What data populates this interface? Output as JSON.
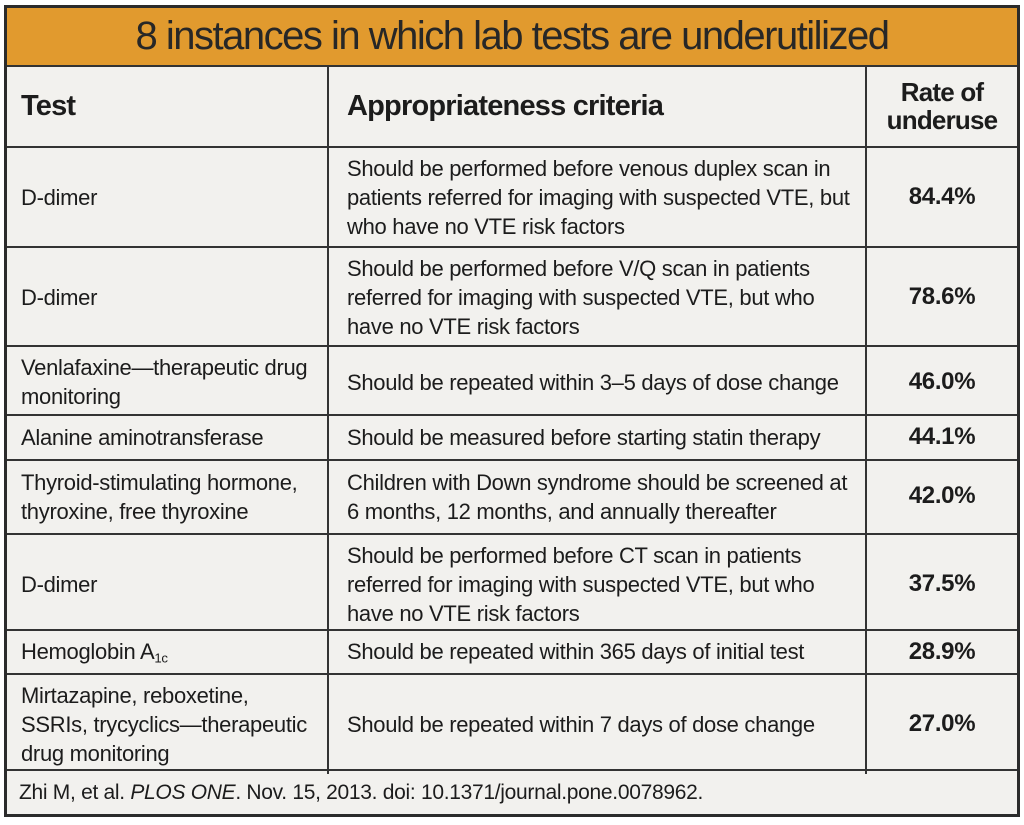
{
  "title": "8 instances in which lab tests are underutilized",
  "colors": {
    "title_bg": "#e19a2e",
    "border": "#2b2b2b",
    "grid_line": "#333333",
    "cell_bg": "#f2f1ee",
    "text": "#1c1c1c"
  },
  "table": {
    "headers": {
      "test": "Test",
      "criteria": "Appropriateness criteria",
      "rate": "Rate of underuse"
    },
    "rows": [
      {
        "test": "D-dimer",
        "criteria": "Should be performed before venous duplex scan in patients referred for imaging with suspected VTE, but who have no VTE risk factors",
        "rate": "84.4%"
      },
      {
        "test": "D-dimer",
        "criteria": "Should be performed before V/Q scan in patients referred for imaging with suspected VTE, but who have no VTE risk factors",
        "rate": "78.6%"
      },
      {
        "test": "Venlafaxine—therapeutic drug monitoring",
        "criteria": "Should be repeated within 3–5 days of dose change",
        "rate": "46.0%"
      },
      {
        "test": "Alanine aminotransferase",
        "criteria": "Should be measured before starting statin therapy",
        "rate": "44.1%"
      },
      {
        "test": "Thyroid-stimulating hormone, thyroxine, free thyroxine",
        "criteria": "Children with Down syndrome should be screened at 6 months, 12 months, and annually thereafter",
        "rate": "42.0%"
      },
      {
        "test": "D-dimer",
        "criteria": "Should be performed before CT scan in patients referred for imaging with suspected VTE, but who have no VTE risk factors",
        "rate": "37.5%"
      },
      {
        "test": "Hemoglobin A",
        "test_sub": "1c",
        "criteria": "Should be repeated within 365 days of initial test",
        "rate": "28.9%"
      },
      {
        "test": "Mirtazapine, reboxetine, SSRIs, trycyclics—therapeutic drug monitoring",
        "criteria": "Should be repeated within 7 days of dose change",
        "rate": "27.0%"
      }
    ]
  },
  "footer": {
    "citation_prefix": "Zhi M, et al. ",
    "journal": "PLOS ONE",
    "citation_suffix": ". Nov. 15, 2013. doi: 10.1371/journal.pone.0078962."
  },
  "chart_data": {
    "type": "table",
    "title": "8 instances in which lab tests are underutilized",
    "columns": [
      "Test",
      "Appropriateness criteria",
      "Rate of underuse"
    ],
    "rows": [
      [
        "D-dimer",
        "Should be performed before venous duplex scan in patients referred for imaging with suspected VTE, but who have no VTE risk factors",
        "84.4%"
      ],
      [
        "D-dimer",
        "Should be performed before V/Q scan in patients referred for imaging with suspected VTE, but who have no VTE risk factors",
        "78.6%"
      ],
      [
        "Venlafaxine—therapeutic drug monitoring",
        "Should be repeated within 3–5 days of dose change",
        "46.0%"
      ],
      [
        "Alanine aminotransferase",
        "Should be measured before starting statin therapy",
        "44.1%"
      ],
      [
        "Thyroid-stimulating hormone, thyroxine, free thyroxine",
        "Children with Down syndrome should be screened at 6 months, 12 months, and annually thereafter",
        "42.0%"
      ],
      [
        "D-dimer",
        "Should be performed before CT scan in patients referred for imaging with suspected VTE, but who have no VTE risk factors",
        "37.5%"
      ],
      [
        "Hemoglobin A1c",
        "Should be repeated within 365 days of initial test",
        "28.9%"
      ],
      [
        "Mirtazapine, reboxetine, SSRIs, trycyclics—therapeutic drug monitoring",
        "Should be repeated within 7 days of dose change",
        "27.0%"
      ]
    ],
    "rates_percent": [
      84.4,
      78.6,
      46.0,
      44.1,
      42.0,
      37.5,
      28.9,
      27.0
    ],
    "source": "Zhi M, et al. PLOS ONE. Nov. 15, 2013. doi: 10.1371/journal.pone.0078962."
  }
}
